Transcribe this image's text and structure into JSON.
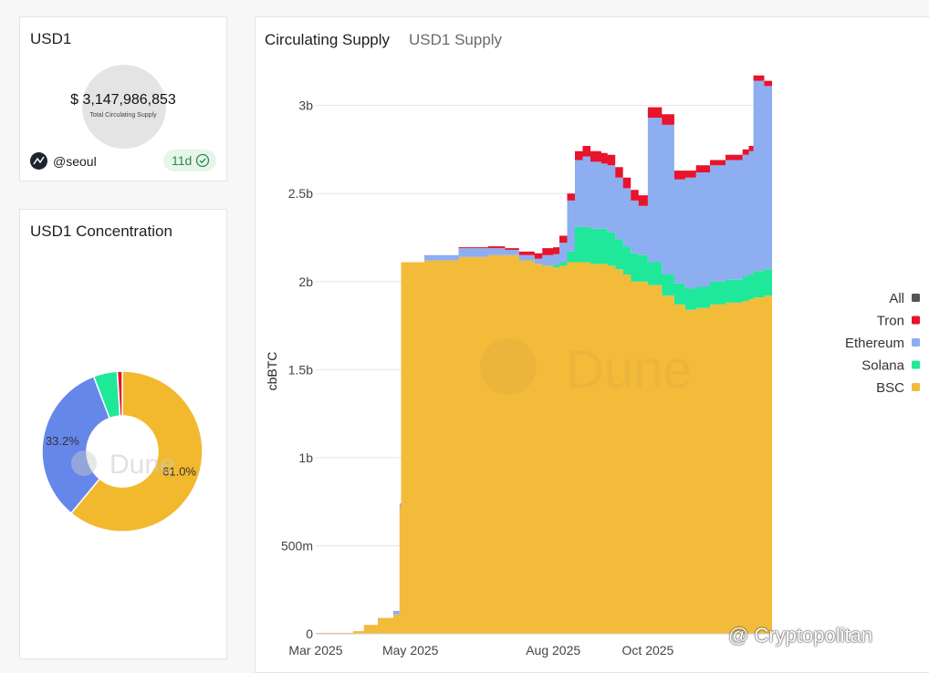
{
  "counter_card": {
    "title": "USD1",
    "value": "$ 3,147,986,853",
    "subtitle": "Total Circulating Supply",
    "author": "@seoul",
    "age": "11d"
  },
  "concentration_card": {
    "title": "USD1 Concentration"
  },
  "supply_card": {
    "title": "Circulating Supply",
    "subtitle": "USD1 Supply"
  },
  "watermark": "@ Cryptopolitan",
  "colors": {
    "All": "#555555",
    "Tron": "#e8132d",
    "Ethereum": "#8daef0",
    "Solana": "#20e89a",
    "BSC": "#f3bb3a",
    "donut_bsc": "#f2b92e",
    "donut_eth": "#6687ea",
    "donut_sol": "#1fe899",
    "donut_tron": "#e8132d",
    "badge_green": "#2c8a47"
  },
  "chart_data": [
    {
      "type": "area",
      "title": "Circulating Supply",
      "subtitle": "USD1 Supply",
      "ylabel": "cbBTC",
      "xlabel": "",
      "stacked": true,
      "ylim": [
        0,
        3200000000
      ],
      "ytick_values": [
        0,
        500000000,
        1000000000,
        1500000000,
        2000000000,
        2500000000,
        3000000000
      ],
      "ytick_labels": [
        "0",
        "500m",
        "1b",
        "1.5b",
        "2b",
        "2.5b",
        "3b"
      ],
      "xlim": [
        "2025-03-01",
        "2025-12-20"
      ],
      "xtick_values": [
        "2025-03-01",
        "2025-05-01",
        "2025-08-01",
        "2025-10-01"
      ],
      "xtick_labels": [
        "Mar 2025",
        "May 2025",
        "Aug 2025",
        "Oct 2025"
      ],
      "legend_position": "right",
      "legend": [
        "All",
        "Tron",
        "Ethereum",
        "Solana",
        "BSC"
      ],
      "x": [
        "2025-03-01",
        "2025-03-25",
        "2025-04-01",
        "2025-04-10",
        "2025-04-20",
        "2025-04-24",
        "2025-04-25",
        "2025-05-10",
        "2025-06-01",
        "2025-06-20",
        "2025-07-01",
        "2025-07-10",
        "2025-07-20",
        "2025-07-25",
        "2025-08-01",
        "2025-08-05",
        "2025-08-10",
        "2025-08-15",
        "2025-08-20",
        "2025-08-25",
        "2025-09-01",
        "2025-09-05",
        "2025-09-10",
        "2025-09-15",
        "2025-09-20",
        "2025-09-25",
        "2025-10-01",
        "2025-10-10",
        "2025-10-18",
        "2025-10-25",
        "2025-11-01",
        "2025-11-10",
        "2025-11-20",
        "2025-12-01",
        "2025-12-05",
        "2025-12-08",
        "2025-12-15"
      ],
      "series": [
        {
          "name": "BSC",
          "values": [
            5000000,
            15000000,
            50000000,
            90000000,
            110000000,
            720000000,
            2110000000,
            2120000000,
            2140000000,
            2150000000,
            2150000000,
            2120000000,
            2100000000,
            2090000000,
            2080000000,
            2090000000,
            2110000000,
            2110000000,
            2110000000,
            2100000000,
            2100000000,
            2090000000,
            2070000000,
            2040000000,
            2000000000,
            2000000000,
            1980000000,
            1920000000,
            1870000000,
            1840000000,
            1850000000,
            1870000000,
            1880000000,
            1890000000,
            1900000000,
            1910000000,
            1920000000
          ]
        },
        {
          "name": "Solana",
          "values": [
            0,
            0,
            0,
            0,
            0,
            0,
            0,
            0,
            0,
            0,
            0,
            0,
            0,
            0,
            15000000,
            20000000,
            60000000,
            200000000,
            200000000,
            200000000,
            200000000,
            190000000,
            170000000,
            160000000,
            160000000,
            150000000,
            130000000,
            120000000,
            120000000,
            120000000,
            120000000,
            130000000,
            130000000,
            140000000,
            140000000,
            150000000,
            150000000
          ]
        },
        {
          "name": "Ethereum",
          "values": [
            0,
            0,
            0,
            0,
            20000000,
            20000000,
            0,
            30000000,
            50000000,
            40000000,
            30000000,
            30000000,
            30000000,
            60000000,
            60000000,
            110000000,
            290000000,
            380000000,
            400000000,
            380000000,
            370000000,
            380000000,
            350000000,
            330000000,
            300000000,
            280000000,
            820000000,
            850000000,
            590000000,
            630000000,
            650000000,
            660000000,
            680000000,
            690000000,
            700000000,
            1080000000,
            1040000000
          ]
        },
        {
          "name": "Tron",
          "values": [
            0,
            0,
            0,
            0,
            0,
            0,
            0,
            0,
            5000000,
            10000000,
            10000000,
            20000000,
            30000000,
            40000000,
            40000000,
            40000000,
            40000000,
            50000000,
            60000000,
            60000000,
            60000000,
            60000000,
            60000000,
            60000000,
            60000000,
            60000000,
            60000000,
            60000000,
            50000000,
            40000000,
            40000000,
            30000000,
            30000000,
            30000000,
            30000000,
            30000000,
            30000000
          ]
        }
      ],
      "all_total_approx": 3147986853
    },
    {
      "type": "pie",
      "title": "USD1 Concentration",
      "donut": true,
      "slices": [
        {
          "name": "BSC",
          "value": 61.0,
          "label": "61.0%"
        },
        {
          "name": "Ethereum",
          "value": 33.2,
          "label": "33.2%"
        },
        {
          "name": "Solana",
          "value": 4.8,
          "label": ""
        },
        {
          "name": "Tron",
          "value": 1.0,
          "label": ""
        }
      ]
    }
  ]
}
